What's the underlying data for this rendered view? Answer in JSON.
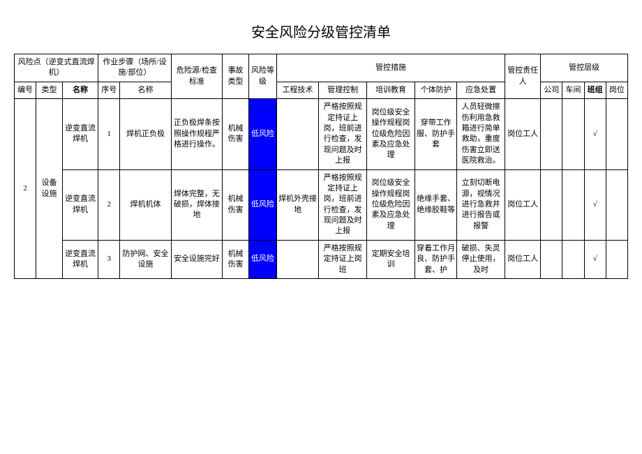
{
  "title": "安全风险分级管控清单",
  "colors": {
    "low_risk_bg": "#0000ff",
    "low_risk_text": "#ffffff",
    "border": "#000000",
    "background": "#ffffff"
  },
  "header": {
    "risk_point_group": "风险点（逆变式直流焊机）",
    "step_group": "作业步骤（场所/设施/部位）",
    "hazard": "危险源/检查标准",
    "accident": "事故类型",
    "risk_level": "风险等级",
    "measures_group": "管控措施",
    "responsible": "管控责任人",
    "level_group": "管控层级",
    "sub": {
      "id": "编号",
      "type": "类型",
      "name": "名称",
      "seq": "序号",
      "step_name": "名称",
      "eng": "工程技术",
      "mgmt": "管理控制",
      "train": "培训教育",
      "ppe": "个体防护",
      "emer": "应急处置",
      "company": "公司",
      "workshop": "车间",
      "team": "班组",
      "post": "岗位"
    }
  },
  "group": {
    "id": "2",
    "type": "设备设施"
  },
  "rows": [
    {
      "name": "逆变直流焊机",
      "seq": "1",
      "step": "焊机正负极",
      "hazard": "正负极焊条按照操作规程严格进行操作。",
      "accident": "机械伤害",
      "risk": "低风险",
      "eng": "",
      "mgmt": "严格按照规定持证上岗，班前进行检查，发现问题及时上报",
      "train": "岗位级安全操作规程岗位级危险因素及应急处理",
      "ppe": "穿带工作服、防护手套",
      "emer": "人员轻微擦伤利用急救箱进行简单救助，重度伤害立即送医院救治。",
      "resp": "岗位工人",
      "lv": {
        "company": "",
        "workshop": "",
        "team": "√",
        "post": ""
      }
    },
    {
      "name": "逆变直流焊机",
      "seq": "2",
      "step": "焊机机体",
      "hazard": "焊体完整，无破损，焊体接地",
      "accident": "机械伤害",
      "risk": "低风险",
      "eng": "焊机外壳接地",
      "mgmt": "严格按照规定持证上岗，班前进行检查，发现问题及时上报",
      "train": "岗位级安全操作规程岗位级危险因素及应急处理",
      "ppe": "绝缘手套、绝缘胶鞋等",
      "emer": "立刻切断电源，视情况进行急救并进行报告或报警",
      "resp": "岗位工人",
      "lv": {
        "company": "",
        "workshop": "",
        "team": "√",
        "post": ""
      }
    },
    {
      "name": "逆变直流焊机",
      "seq": "3",
      "step": "防护网、安全设施",
      "hazard": "安全设施完好",
      "accident": "机械伤害",
      "risk": "低风险",
      "eng": "",
      "mgmt": "严格按照规定持证上岗班",
      "train": "定期安全培训",
      "ppe": "穿着工作月良、防护手套、护",
      "emer": "破损、失灵停止使用，及时",
      "resp": "岗位工人",
      "lv": {
        "company": "",
        "workshop": "",
        "team": "√",
        "post": ""
      }
    }
  ]
}
